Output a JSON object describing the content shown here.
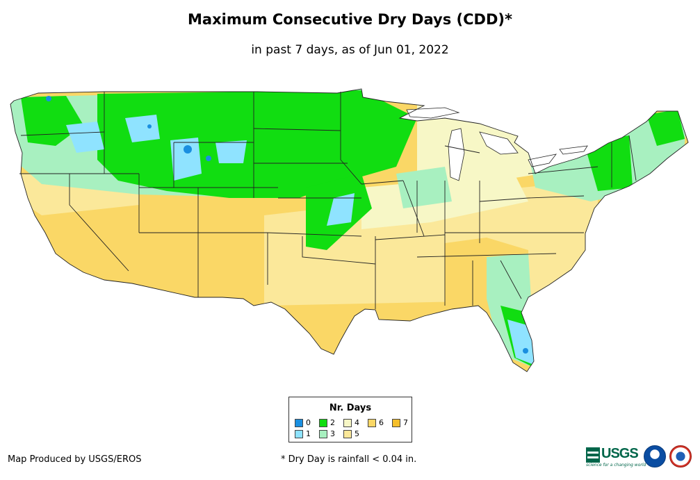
{
  "header": {
    "title": "Maximum Consecutive Dry Days (CDD)*",
    "subtitle": "in past 7 days, as of Jun 01, 2022"
  },
  "legend": {
    "title": "Nr. Days",
    "items": [
      {
        "label": "0",
        "color": "#1a8fe0"
      },
      {
        "label": "1",
        "color": "#8fe3ff"
      },
      {
        "label": "2",
        "color": "#11dd11"
      },
      {
        "label": "3",
        "color": "#a8f0c0"
      },
      {
        "label": "4",
        "color": "#f7f7c6"
      },
      {
        "label": "5",
        "color": "#fbe89a"
      },
      {
        "label": "6",
        "color": "#fad766"
      },
      {
        "label": "7",
        "color": "#f5bf2a"
      }
    ]
  },
  "footer": {
    "credit": "Map Produced by USGS/EROS",
    "footnote": "* Dry Day is rainfall < 0.04 in.",
    "usgs_logo_text": "USGS",
    "usgs_tagline": "science for a changing world"
  },
  "map": {
    "region": "Contiguous United States",
    "state_border_color": "#222222"
  }
}
